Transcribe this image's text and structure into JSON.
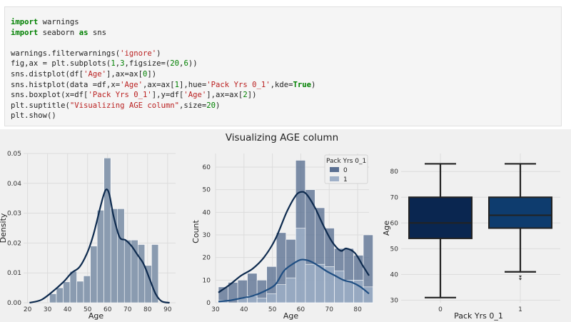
{
  "code_lines": [
    [
      {
        "t": "import",
        "c": "kw"
      },
      {
        "t": " warnings"
      }
    ],
    [
      {
        "t": "import",
        "c": "kw"
      },
      {
        "t": " seaborn "
      },
      {
        "t": "as",
        "c": "kw"
      },
      {
        "t": " sns"
      }
    ],
    [],
    [
      {
        "t": "warnings.filterwarnings("
      },
      {
        "t": "'ignore'",
        "c": "str"
      },
      {
        "t": ")"
      }
    ],
    [
      {
        "t": "fig,ax = plt.subplots("
      },
      {
        "t": "1",
        "c": "num"
      },
      {
        "t": ","
      },
      {
        "t": "3",
        "c": "num"
      },
      {
        "t": ",figsize=("
      },
      {
        "t": "20",
        "c": "num"
      },
      {
        "t": ","
      },
      {
        "t": "6",
        "c": "num"
      },
      {
        "t": "))"
      }
    ],
    [
      {
        "t": "sns.distplot(df["
      },
      {
        "t": "'Age'",
        "c": "str"
      },
      {
        "t": "],ax=ax["
      },
      {
        "t": "0",
        "c": "num"
      },
      {
        "t": "])"
      }
    ],
    [
      {
        "t": "sns.histplot(data =df,x="
      },
      {
        "t": "'Age'",
        "c": "str"
      },
      {
        "t": ",ax=ax["
      },
      {
        "t": "1",
        "c": "num"
      },
      {
        "t": "],hue="
      },
      {
        "t": "'Pack Yrs 0_1'",
        "c": "str"
      },
      {
        "t": ",kde="
      },
      {
        "t": "True",
        "c": "cst"
      },
      {
        "t": ")"
      }
    ],
    [
      {
        "t": "sns.boxplot(x=df["
      },
      {
        "t": "'Pack Yrs 0_1'",
        "c": "str"
      },
      {
        "t": "],y=df["
      },
      {
        "t": "'Age'",
        "c": "str"
      },
      {
        "t": "],ax=ax["
      },
      {
        "t": "2",
        "c": "num"
      },
      {
        "t": "])"
      }
    ],
    [
      {
        "t": "plt.suptitle("
      },
      {
        "t": "\"Visualizing AGE column\"",
        "c": "str"
      },
      {
        "t": ",size="
      },
      {
        "t": "20",
        "c": "num"
      },
      {
        "t": ")"
      }
    ],
    [
      {
        "t": "plt.show()"
      }
    ]
  ],
  "output": {
    "suptitle": "Visualizing AGE column"
  },
  "chart_data": [
    {
      "type": "bar",
      "title": "",
      "xlabel": "Age",
      "ylabel": "Density",
      "xlim": [
        18,
        94
      ],
      "ylim": [
        0,
        0.05
      ],
      "xticks": [
        20,
        30,
        40,
        50,
        60,
        70,
        80,
        90
      ],
      "yticks": [
        0.0,
        0.01,
        0.02,
        0.03,
        0.04,
        0.05
      ],
      "ytick_labels": [
        "0.00",
        "0.01",
        "0.02",
        "0.03",
        "0.04",
        "0.05"
      ],
      "bin_width": 3.4,
      "bins": [
        {
          "x0": 31.0,
          "value": 0.003
        },
        {
          "x0": 34.4,
          "value": 0.005
        },
        {
          "x0": 37.8,
          "value": 0.007
        },
        {
          "x0": 41.2,
          "value": 0.0105
        },
        {
          "x0": 44.6,
          "value": 0.0072
        },
        {
          "x0": 48.0,
          "value": 0.009
        },
        {
          "x0": 51.4,
          "value": 0.019
        },
        {
          "x0": 54.8,
          "value": 0.031
        },
        {
          "x0": 58.2,
          "value": 0.0485
        },
        {
          "x0": 61.6,
          "value": 0.0315
        },
        {
          "x0": 65.0,
          "value": 0.0315
        },
        {
          "x0": 68.4,
          "value": 0.021
        },
        {
          "x0": 71.8,
          "value": 0.021
        },
        {
          "x0": 75.2,
          "value": 0.0195
        },
        {
          "x0": 78.6,
          "value": 0.0125
        },
        {
          "x0": 82.0,
          "value": 0.0195
        }
      ],
      "kde": {
        "x": [
          21,
          27,
          33,
          38,
          42,
          46,
          50,
          53,
          56,
          58,
          59.5,
          61,
          63,
          66,
          69,
          72,
          75,
          78,
          81,
          84,
          87,
          91
        ],
        "y": [
          0,
          0.001,
          0.004,
          0.007,
          0.01,
          0.012,
          0.017,
          0.023,
          0.031,
          0.036,
          0.038,
          0.036,
          0.029,
          0.022,
          0.021,
          0.019,
          0.016,
          0.013,
          0.008,
          0.003,
          0.0005,
          0
        ]
      },
      "colors": {
        "bar": "#8a9bb0",
        "line": "#0d2a4e",
        "bg": "#f0f0f0",
        "grid": "#dcdcdc"
      }
    },
    {
      "type": "bar",
      "title": "",
      "xlabel": "Age",
      "ylabel": "Count",
      "xlim": [
        30,
        84
      ],
      "ylim": [
        0,
        66
      ],
      "xticks": [
        30,
        40,
        50,
        60,
        70,
        80
      ],
      "yticks": [
        0,
        10,
        20,
        30,
        40,
        50,
        60
      ],
      "bin_width": 3.4,
      "bin_starts": [
        31.0,
        34.4,
        37.8,
        41.2,
        44.6,
        48.0,
        51.4,
        54.8,
        58.2,
        61.6,
        65.0,
        68.4,
        71.8,
        75.2,
        78.6,
        82.0
      ],
      "legend": {
        "title": "Pack Yrs 0_1",
        "position": "top-right",
        "labels": [
          "0",
          "1"
        ]
      },
      "series": [
        {
          "name": "0",
          "values": [
            7,
            9,
            10,
            13,
            10,
            16,
            31,
            28,
            63,
            50,
            42,
            33,
            24,
            24,
            21,
            30
          ],
          "color": "#5a6f91"
        },
        {
          "name": "1",
          "values": [
            1,
            0,
            2,
            3,
            2,
            4,
            8,
            11,
            33,
            17,
            17,
            16,
            14,
            10,
            10,
            7
          ],
          "color": "#9fb0c8"
        }
      ],
      "kde": [
        {
          "name": "0",
          "x": [
            31,
            35,
            39,
            43,
            47,
            51,
            55,
            58,
            60,
            62,
            65,
            68,
            71,
            74,
            76,
            79,
            82,
            84
          ],
          "y": [
            4.5,
            8,
            12,
            15,
            20,
            28,
            40,
            47,
            49,
            48,
            42,
            34,
            27,
            23,
            24,
            22,
            16,
            12
          ],
          "color": "#0d2a4e"
        },
        {
          "name": "1",
          "x": [
            31,
            35,
            39,
            43,
            47,
            51,
            54,
            57,
            60,
            63,
            66,
            69,
            72,
            75,
            78,
            81,
            84
          ],
          "y": [
            0.5,
            1,
            2,
            3,
            5,
            8,
            14,
            17,
            19,
            18.5,
            16.5,
            14,
            12,
            10,
            9,
            7,
            4
          ],
          "color": "#1f4e82"
        }
      ]
    },
    {
      "type": "box",
      "title": "",
      "xlabel": "Pack Yrs 0_1",
      "ylabel": "Age",
      "ylim": [
        29,
        87
      ],
      "yticks": [
        30,
        40,
        50,
        60,
        70,
        80
      ],
      "categories": [
        "0",
        "1"
      ],
      "boxes": [
        {
          "whislo": 31,
          "q1": 54,
          "med": 60,
          "q3": 70,
          "whishi": 83,
          "fliers": [],
          "color": "#0a2650"
        },
        {
          "whislo": 41,
          "q1": 58,
          "med": 63,
          "q3": 70,
          "whishi": 83,
          "fliers": [
            38,
            39
          ],
          "color": "#0e3c6e"
        }
      ]
    }
  ]
}
